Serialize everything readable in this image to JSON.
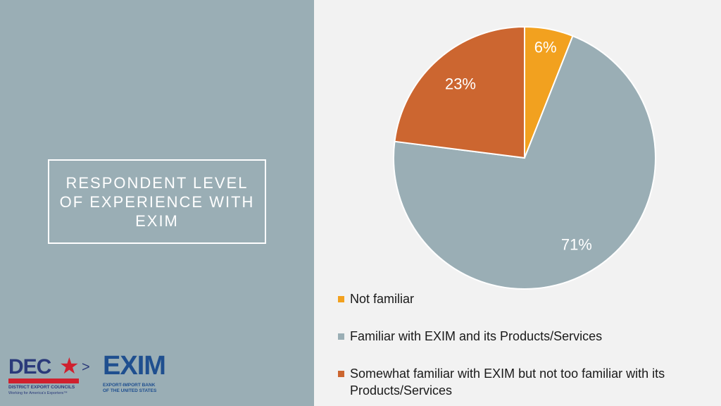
{
  "slide": {
    "title": "RESPONDENT LEVEL OF EXPERIENCE WITH EXIM"
  },
  "logos": {
    "dec": {
      "letters": "DEC",
      "name": "DISTRICT EXPORT COUNCILS",
      "tagline": "Working for America's Exporters™"
    },
    "exim": {
      "letters": "EXIM",
      "name_line1": "EXPORT-IMPORT BANK",
      "name_line2": "OF THE UNITED STATES"
    }
  },
  "chart_data": {
    "type": "pie",
    "title": "",
    "legend_position": "bottom",
    "slices": [
      {
        "label": "Not familiar",
        "value": 6,
        "data_label": "6%",
        "color": "#f2a11f"
      },
      {
        "label": "Familiar with EXIM and its Products/Services",
        "value": 71,
        "data_label": "71%",
        "color": "#9aaeb5"
      },
      {
        "label": "Somewhat familiar with EXIM but not too familiar with its Products/Services",
        "value": 23,
        "data_label": "23%",
        "color": "#cc6630"
      }
    ],
    "data_label_color": "#ffffff"
  }
}
